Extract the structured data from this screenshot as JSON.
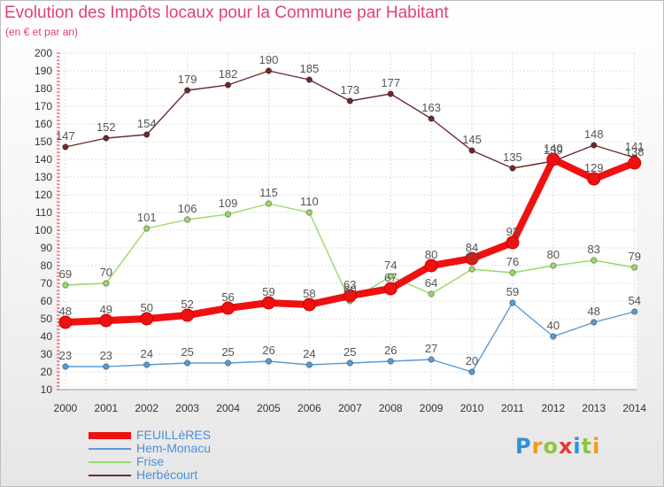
{
  "header": {
    "title": "Evolution des Impôts locaux pour la Commune par Habitant",
    "subtitle": "(en € et par an)"
  },
  "logo": {
    "text": "Proxiti",
    "letter_colors": [
      "#2f8fd8",
      "#f29a1f",
      "#8cc63e",
      "#e53935",
      "#2f8fd8",
      "#8cc63e",
      "#f29a1f"
    ]
  },
  "chart_data": {
    "type": "line",
    "title": "Evolution des Impôts locaux pour la Commune par Habitant",
    "subtitle": "(en € et par an)",
    "xlabel": "",
    "ylabel": "",
    "x": [
      2000,
      2001,
      2002,
      2003,
      2004,
      2005,
      2006,
      2007,
      2008,
      2009,
      2010,
      2011,
      2012,
      2013,
      2014
    ],
    "ylim": [
      10,
      200
    ],
    "yticks": [
      10,
      20,
      30,
      40,
      50,
      60,
      70,
      80,
      90,
      100,
      110,
      120,
      130,
      140,
      150,
      160,
      170,
      180,
      190,
      200
    ],
    "grid": true,
    "legend_position": "bottom-left",
    "series": [
      {
        "name": "FEUILLèRES",
        "color": "#ee1111",
        "emphasis": true,
        "values": [
          48,
          49,
          50,
          52,
          56,
          59,
          58,
          63,
          67,
          80,
          84,
          93,
          140,
          129,
          138
        ],
        "labels": [
          "48",
          "49",
          "50",
          "52",
          "56",
          "59",
          "58",
          "63",
          "67",
          "80",
          "84",
          "93",
          "140",
          "129",
          "138"
        ]
      },
      {
        "name": "Hem-Monacu",
        "color": "#5a9bd0",
        "emphasis": false,
        "values": [
          23,
          23,
          24,
          25,
          25,
          26,
          24,
          25,
          26,
          27,
          20,
          59,
          40,
          48,
          54
        ],
        "labels": [
          "23",
          "23",
          "24",
          "25",
          "25",
          "26",
          "24",
          "25",
          "26",
          "27",
          "20",
          "59",
          "40",
          "48",
          "54"
        ]
      },
      {
        "name": "Frise",
        "color": "#9ad86a",
        "emphasis": false,
        "values": [
          69,
          70,
          101,
          106,
          109,
          115,
          110,
          60,
          74,
          64,
          78,
          76,
          80,
          83,
          79
        ],
        "labels": [
          "69",
          "70",
          "101",
          "106",
          "109",
          "115",
          "110",
          "60",
          "74",
          "64",
          "78",
          "76",
          "80",
          "83",
          "79"
        ]
      },
      {
        "name": "Herbécourt",
        "color": "#6e2b2b",
        "emphasis": false,
        "values": [
          147,
          152,
          154,
          179,
          182,
          190,
          185,
          173,
          177,
          163,
          145,
          135,
          139,
          148,
          141
        ],
        "labels": [
          "147",
          "152",
          "154",
          "179",
          "182",
          "190",
          "185",
          "173",
          "177",
          "163",
          "145",
          "135",
          "139",
          "148",
          "141"
        ]
      }
    ]
  }
}
